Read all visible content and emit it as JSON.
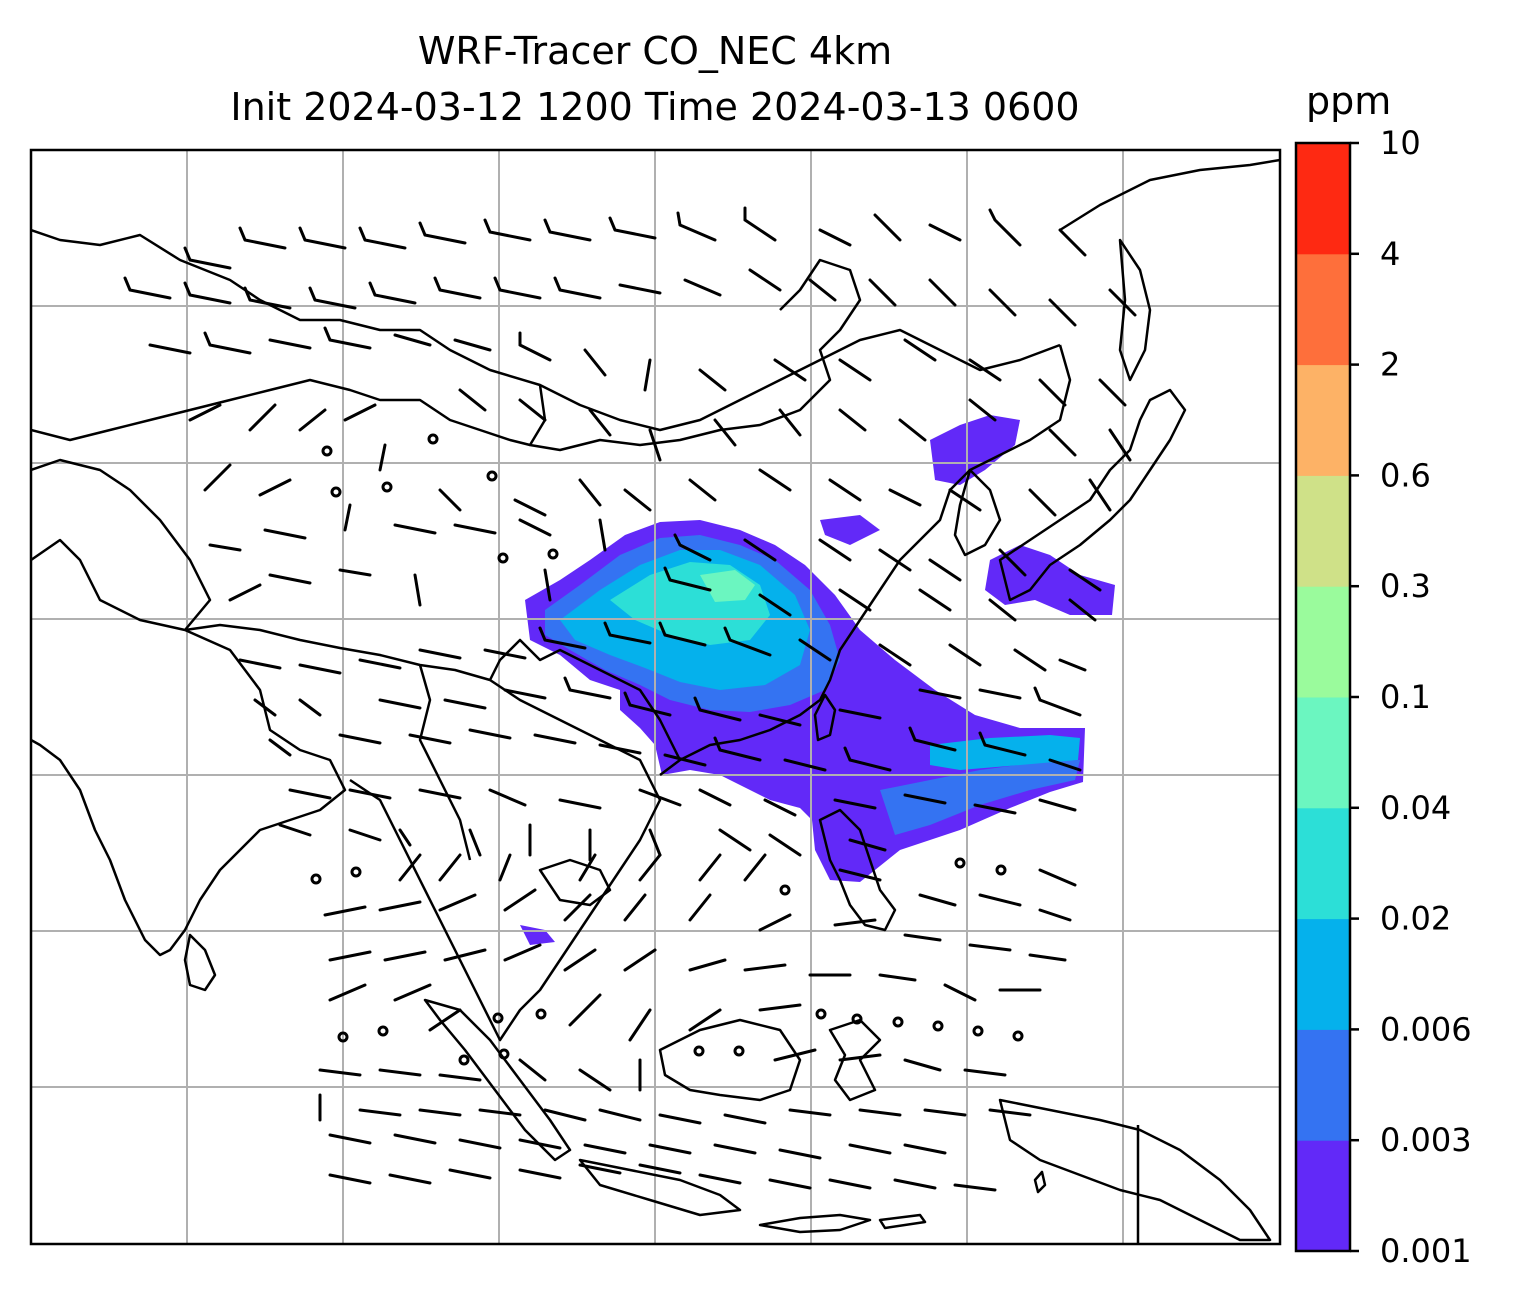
{
  "title": {
    "line1": "WRF-Tracer CO_NEC 4km",
    "line2": "Init 2024-03-12 1200 Time 2024-03-13 0600"
  },
  "colorbar": {
    "unit": "ppm",
    "levels": [
      "0.001",
      "0.003",
      "0.006",
      "0.02",
      "0.04",
      "0.1",
      "0.3",
      "0.6",
      "2",
      "4",
      "10"
    ],
    "colors": [
      "#6229f8",
      "#3473f2",
      "#05b1ec",
      "#2cdfd7",
      "#6bf6c0",
      "#9afb9c",
      "#cfe188",
      "#fdb266",
      "#fe6f3b",
      "#fe2912"
    ]
  },
  "map": {
    "overlay": "wind barbs",
    "gridlines": true,
    "coastlines": true,
    "borders": true
  }
}
